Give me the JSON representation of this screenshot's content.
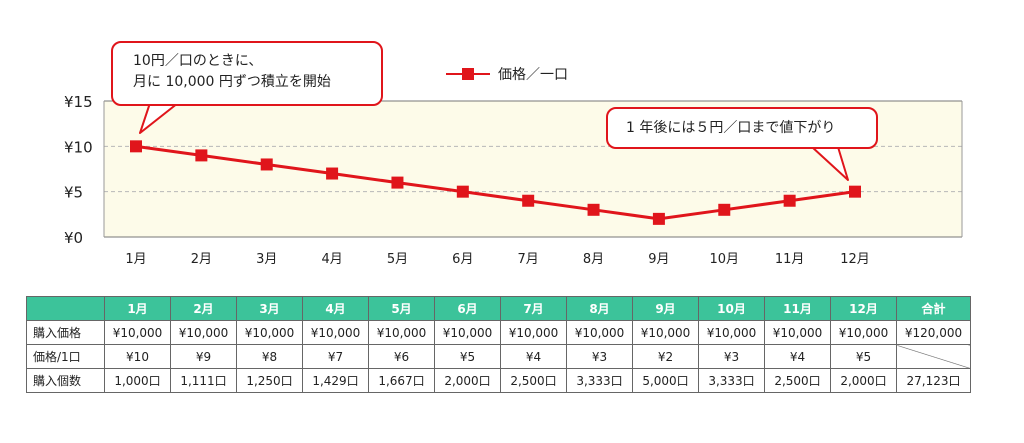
{
  "chart_data": {
    "type": "line",
    "categories": [
      "1月",
      "2月",
      "3月",
      "4月",
      "5月",
      "6月",
      "7月",
      "8月",
      "9月",
      "10月",
      "11月",
      "12月"
    ],
    "series": [
      {
        "name": "価格／一口",
        "values": [
          10,
          9,
          8,
          7,
          6,
          5,
          4,
          3,
          2,
          3,
          4,
          5
        ]
      }
    ],
    "ylim": [
      0,
      15
    ],
    "yticks": [
      "¥0",
      "¥5",
      "¥10",
      "¥15"
    ],
    "ytick_values": [
      0,
      5,
      10,
      15
    ],
    "grid": true,
    "legend": "top-center",
    "colors": {
      "line": "#e0151b",
      "plot_bg": "#fdfbe9",
      "header_bg": "#3cc39a"
    },
    "annotations": {
      "start": [
        "10円／口のときに、",
        "月に 10,000 円ずつ積立を開始"
      ],
      "end": [
        "1 年後には５円／口まで値下がり"
      ]
    }
  },
  "table": {
    "header": [
      "",
      "1月",
      "2月",
      "3月",
      "4月",
      "5月",
      "6月",
      "7月",
      "8月",
      "9月",
      "10月",
      "11月",
      "12月",
      "合計"
    ],
    "rows": [
      {
        "label": "購入価格",
        "cells": [
          "¥10,000",
          "¥10,000",
          "¥10,000",
          "¥10,000",
          "¥10,000",
          "¥10,000",
          "¥10,000",
          "¥10,000",
          "¥10,000",
          "¥10,000",
          "¥10,000",
          "¥10,000",
          "¥120,000"
        ]
      },
      {
        "label": "価格/1口",
        "cells": [
          "¥10",
          "¥9",
          "¥8",
          "¥7",
          "¥6",
          "¥5",
          "¥4",
          "¥3",
          "¥2",
          "¥3",
          "¥4",
          "¥5",
          ""
        ]
      },
      {
        "label": "購入個数",
        "cells": [
          "1,000口",
          "1,111口",
          "1,250口",
          "1,429口",
          "1,667口",
          "2,000口",
          "2,500口",
          "3,333口",
          "5,000口",
          "3,333口",
          "2,500口",
          "2,000口",
          "27,123口"
        ]
      }
    ]
  }
}
